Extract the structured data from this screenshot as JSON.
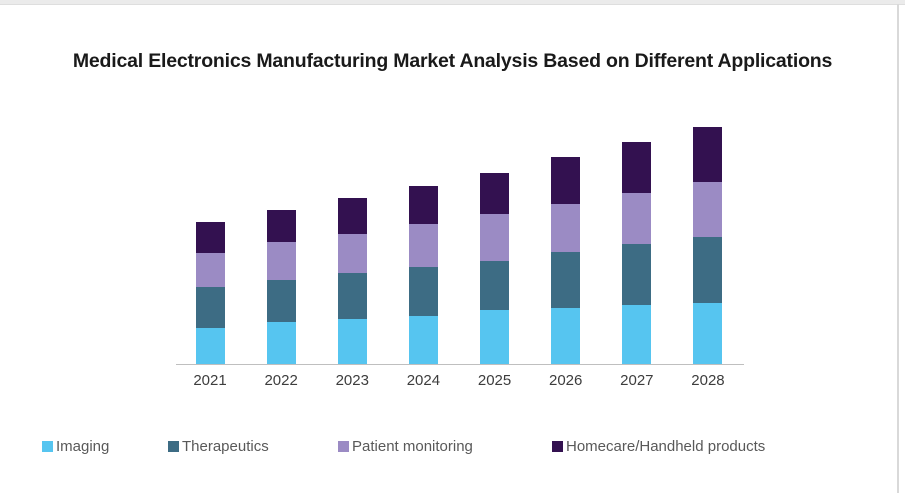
{
  "page": {
    "background_color": "#ffffff",
    "top_strip_color": "#ebebeb",
    "right_border_color": "#d9d9d9"
  },
  "chart_data": {
    "type": "bar",
    "stacked": true,
    "title": "Medical Electronics Manufacturing Market Analysis Based on Different Applications",
    "categories": [
      "2021",
      "2022",
      "2023",
      "2024",
      "2025",
      "2026",
      "2027",
      "2028"
    ],
    "series": [
      {
        "name": "Imaging",
        "color": "#56c5f0",
        "values": [
          36,
          41,
          44,
          47,
          53,
          55,
          58,
          60
        ]
      },
      {
        "name": "Therapeutics",
        "color": "#3d6c84",
        "values": [
          40,
          42,
          46,
          49,
          49,
          56,
          60,
          65
        ]
      },
      {
        "name": "Patient monitoring",
        "color": "#9b8bc4",
        "values": [
          34,
          37,
          38,
          42,
          46,
          47,
          51,
          55
        ]
      },
      {
        "name": "Homecare/Handheld products",
        "color": "#331150",
        "values": [
          30,
          32,
          36,
          38,
          41,
          46,
          50,
          54
        ]
      }
    ],
    "totals": [
      140,
      152,
      164,
      176,
      189,
      204,
      219,
      234
    ],
    "xlabel": "",
    "ylabel": "",
    "y_axis_visible": false,
    "value_units": "relative height units (chart displays no y-axis scale or data labels)",
    "legend_position": "bottom",
    "grid": false,
    "styles": {
      "title_color": "#1a1a1a",
      "axis_line_color": "#bfbfbf",
      "tick_label_color": "#3d3d3d",
      "legend_text_color": "#595959"
    }
  }
}
